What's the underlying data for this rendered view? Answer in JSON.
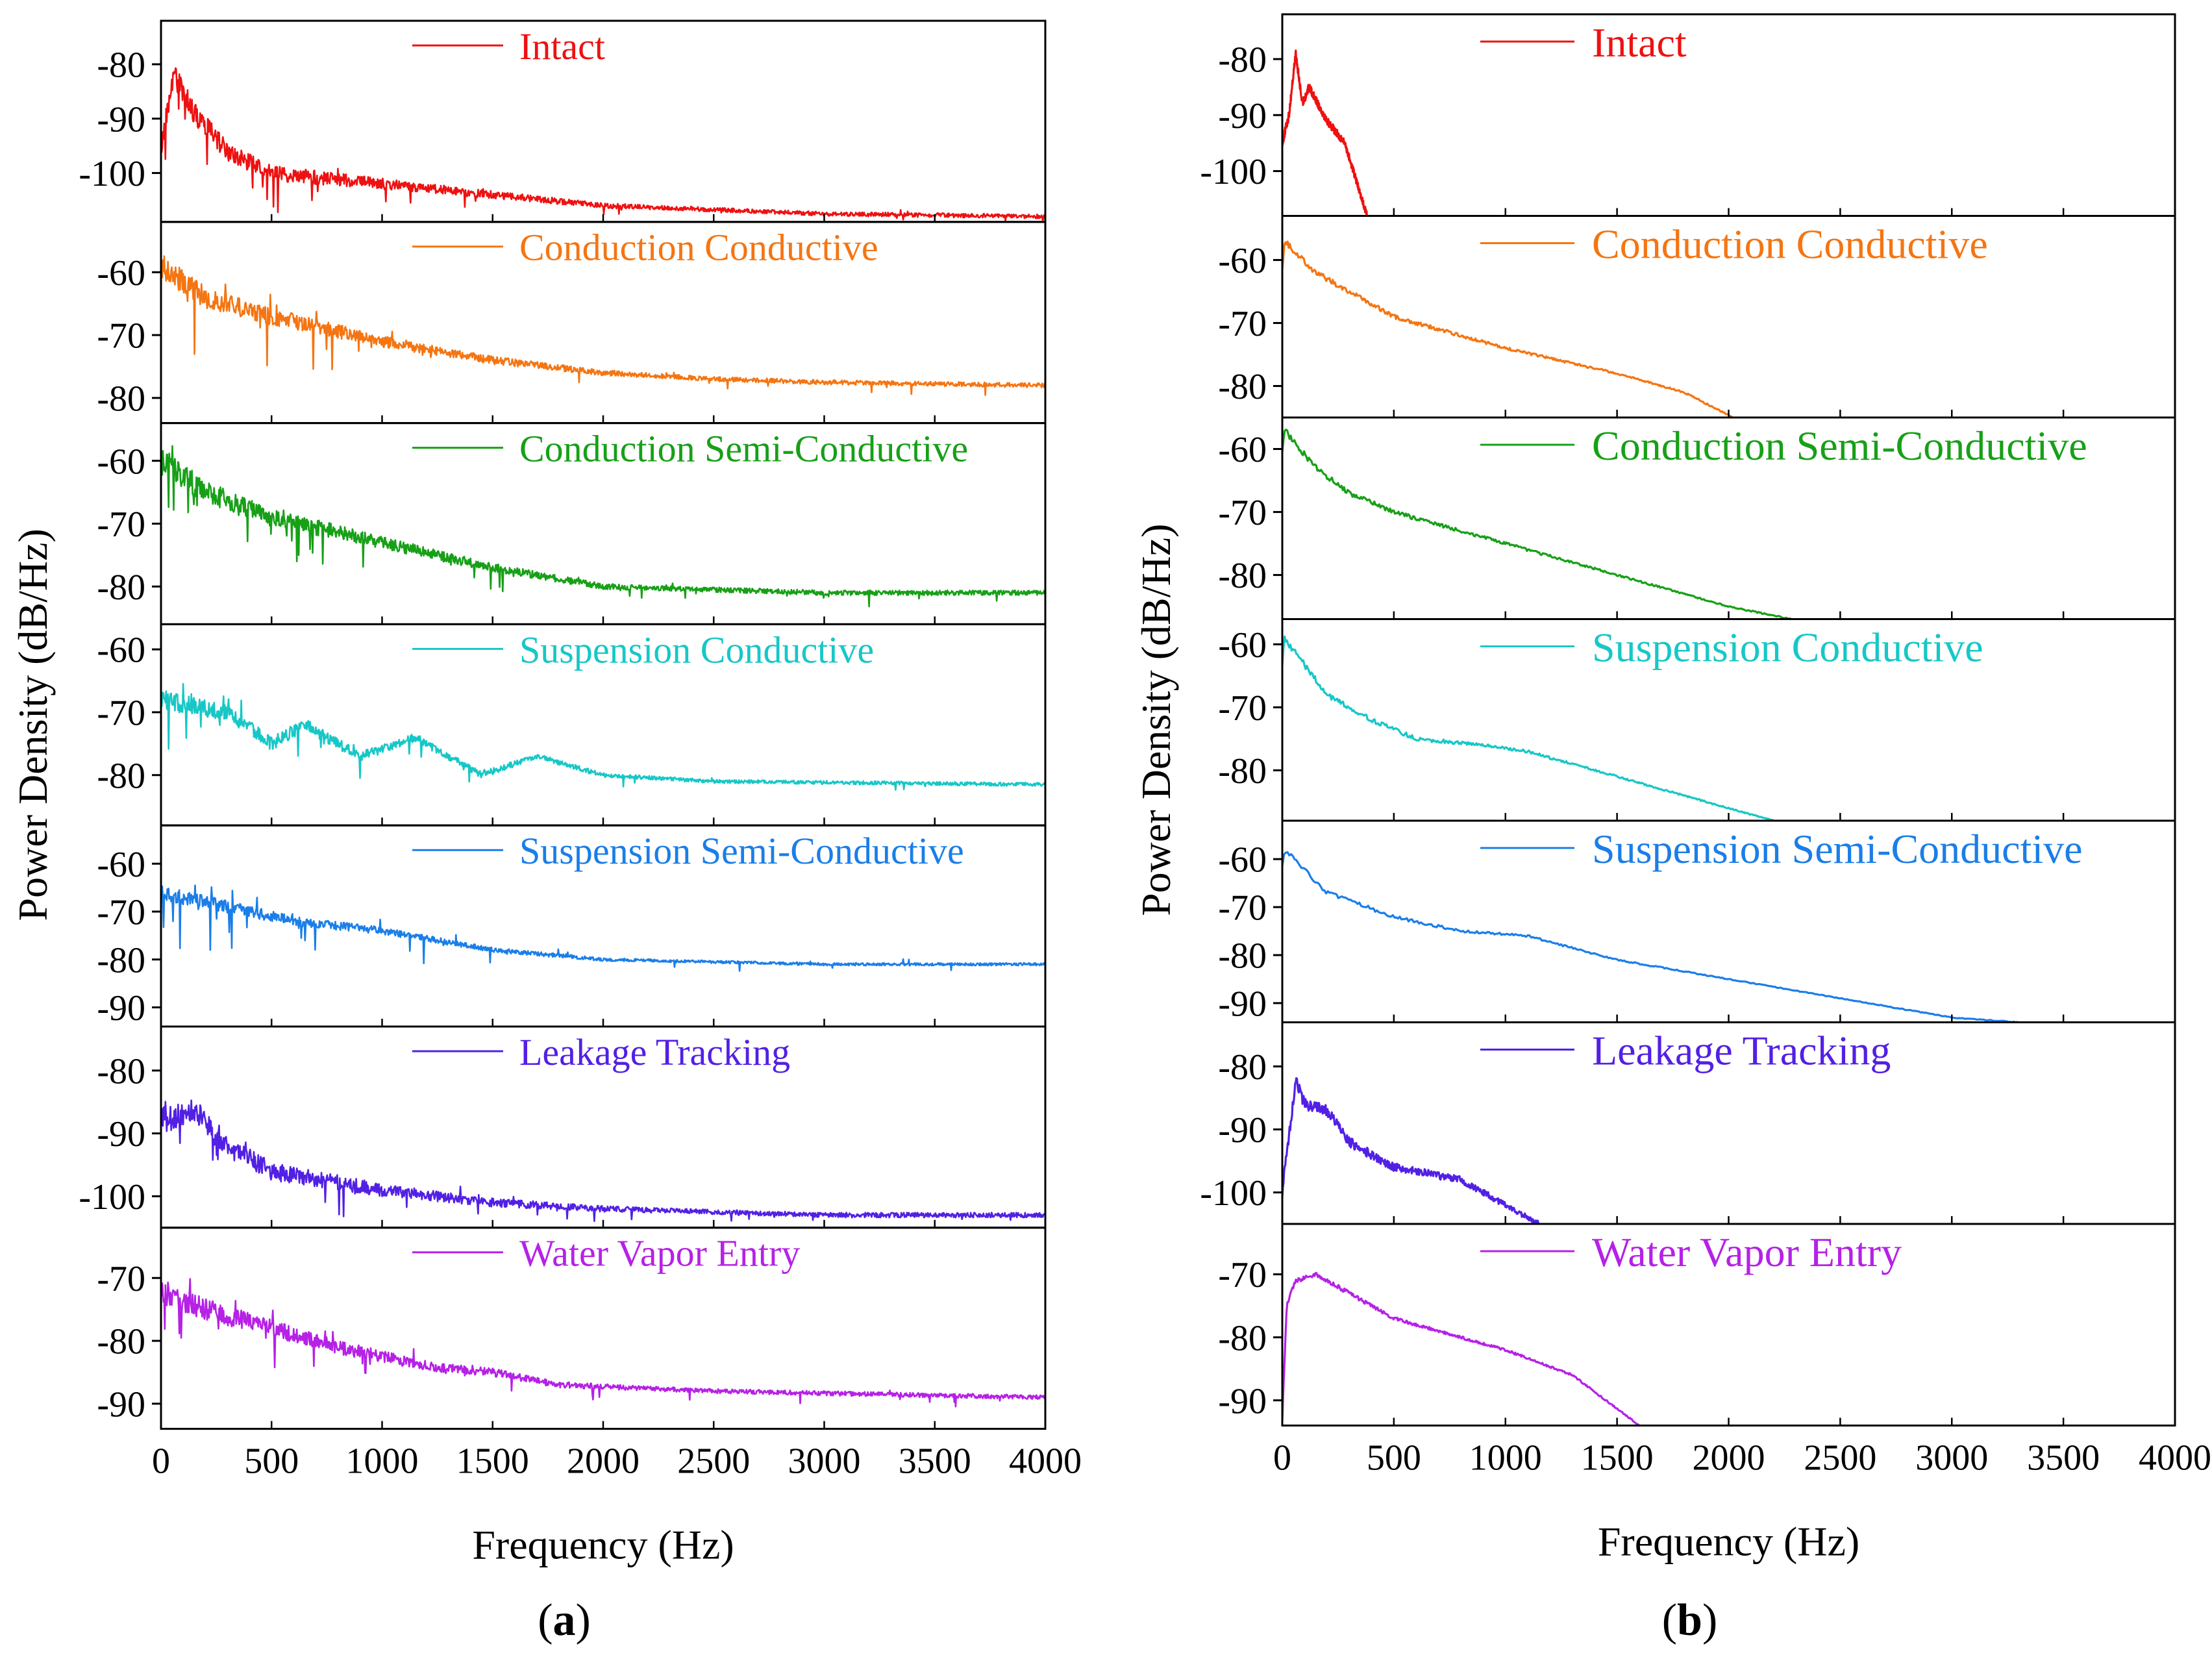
{
  "chart_data": [
    {
      "id": "a",
      "type": "line",
      "panel_label": "a",
      "xlabel": "Frequency (Hz)",
      "ylabel": "Power Density (dB/Hz)",
      "xlim": [
        0,
        4000
      ],
      "xticks": [
        0,
        500,
        1000,
        1500,
        2000,
        2500,
        3000,
        3500,
        4000
      ],
      "rows": [
        {
          "name": "Intact",
          "color": "#ee1111",
          "ylim": [
            -109,
            -72
          ],
          "yticks": [
            -80,
            -90,
            -100
          ],
          "noise": 2.2,
          "spike": 6,
          "trend": [
            [
              0,
              -95
            ],
            [
              60,
              -82
            ],
            [
              150,
              -89
            ],
            [
              300,
              -96
            ],
            [
              500,
              -100
            ],
            [
              1000,
              -102
            ],
            [
              1500,
              -104
            ],
            [
              2000,
              -106
            ],
            [
              3000,
              -107.5
            ],
            [
              4000,
              -108
            ]
          ]
        },
        {
          "name": "Conduction Conductive",
          "color": "#f57512",
          "ylim": [
            -84,
            -52
          ],
          "yticks": [
            -60,
            -70,
            -80
          ],
          "noise": 2.0,
          "spike": 7,
          "trend": [
            [
              0,
              -59
            ],
            [
              200,
              -64
            ],
            [
              500,
              -67
            ],
            [
              1000,
              -71
            ],
            [
              1500,
              -74
            ],
            [
              2000,
              -76
            ],
            [
              2500,
              -77
            ],
            [
              3000,
              -77.5
            ],
            [
              4000,
              -78
            ]
          ]
        },
        {
          "name": "Conduction Semi-Conductive",
          "color": "#17a017",
          "ylim": [
            -86,
            -54
          ],
          "yticks": [
            -60,
            -70,
            -80
          ],
          "noise": 2.2,
          "spike": 7,
          "trend": [
            [
              0,
              -60
            ],
            [
              200,
              -65
            ],
            [
              500,
              -69
            ],
            [
              1000,
              -73
            ],
            [
              1500,
              -77
            ],
            [
              2000,
              -80
            ],
            [
              2500,
              -80.5
            ],
            [
              3000,
              -81
            ],
            [
              4000,
              -81
            ]
          ]
        },
        {
          "name": "Suspension Conductive",
          "color": "#17c7c7",
          "ylim": [
            -88,
            -56
          ],
          "yticks": [
            -60,
            -70,
            -80
          ],
          "noise": 1.6,
          "spike": 5,
          "trend": [
            [
              0,
              -68
            ],
            [
              300,
              -70
            ],
            [
              500,
              -75
            ],
            [
              650,
              -72
            ],
            [
              900,
              -77
            ],
            [
              1150,
              -74
            ],
            [
              1450,
              -80
            ],
            [
              1700,
              -77
            ],
            [
              2000,
              -80
            ],
            [
              2500,
              -81
            ],
            [
              4000,
              -81.5
            ]
          ]
        },
        {
          "name": "Suspension Semi-Conductive",
          "color": "#1a7ee8",
          "ylim": [
            -94,
            -52
          ],
          "yticks": [
            -60,
            -70,
            -80,
            -90
          ],
          "noise": 1.6,
          "spike": 8,
          "trend": [
            [
              0,
              -66
            ],
            [
              300,
              -69
            ],
            [
              600,
              -72
            ],
            [
              1000,
              -74
            ],
            [
              1500,
              -78
            ],
            [
              2000,
              -80
            ],
            [
              3000,
              -81
            ],
            [
              4000,
              -81
            ]
          ]
        },
        {
          "name": "Leakage Tracking",
          "color": "#5220e4",
          "ylim": [
            -105,
            -73
          ],
          "yticks": [
            -80,
            -90,
            -100
          ],
          "noise": 2.2,
          "spike": 6,
          "trend": [
            [
              0,
              -88
            ],
            [
              150,
              -86
            ],
            [
              300,
              -92
            ],
            [
              500,
              -96
            ],
            [
              1000,
              -99
            ],
            [
              1500,
              -101
            ],
            [
              2000,
              -102
            ],
            [
              3000,
              -103
            ],
            [
              4000,
              -103
            ]
          ]
        },
        {
          "name": "Water Vapor Entry",
          "color": "#b621e6",
          "ylim": [
            -94,
            -62
          ],
          "yticks": [
            -70,
            -80,
            -90
          ],
          "noise": 2.0,
          "spike": 6,
          "trend": [
            [
              0,
              -72
            ],
            [
              200,
              -75
            ],
            [
              500,
              -78
            ],
            [
              800,
              -81
            ],
            [
              1200,
              -84
            ],
            [
              1500,
              -85
            ],
            [
              1800,
              -87
            ],
            [
              2500,
              -88
            ],
            [
              4000,
              -89
            ]
          ]
        }
      ]
    },
    {
      "id": "b",
      "type": "line",
      "panel_label": "b",
      "xlabel": "Frequency (Hz)",
      "ylabel": "Power Density (dB/Hz)",
      "xlim": [
        0,
        4000
      ],
      "xticks": [
        0,
        500,
        1000,
        1500,
        2000,
        2500,
        3000,
        3500,
        4000
      ],
      "rows": [
        {
          "name": "Intact",
          "color": "#ee1111",
          "ylim": [
            -108,
            -72
          ],
          "yticks": [
            -80,
            -90,
            -100
          ],
          "noise": 0.8,
          "spike": 0,
          "trend": [
            [
              0,
              -95
            ],
            [
              30,
              -90
            ],
            [
              60,
              -79
            ],
            [
              90,
              -88
            ],
            [
              120,
              -85
            ],
            [
              200,
              -91
            ],
            [
              280,
              -95
            ],
            [
              380,
              -108
            ]
          ]
        },
        {
          "name": "Conduction Conductive",
          "color": "#f57512",
          "ylim": [
            -85,
            -53
          ],
          "yticks": [
            -60,
            -70,
            -80
          ],
          "noise": 0.5,
          "spike": 0,
          "trend": [
            [
              0,
              -61
            ],
            [
              10,
              -57
            ],
            [
              150,
              -62
            ],
            [
              300,
              -65
            ],
            [
              500,
              -69
            ],
            [
              1000,
              -74
            ],
            [
              1500,
              -78
            ],
            [
              1800,
              -81
            ],
            [
              2020,
              -85
            ]
          ]
        },
        {
          "name": "Conduction Semi-Conductive",
          "color": "#17a017",
          "ylim": [
            -87,
            -55
          ],
          "yticks": [
            -60,
            -70,
            -80
          ],
          "noise": 0.5,
          "spike": 0,
          "trend": [
            [
              0,
              -60
            ],
            [
              10,
              -57
            ],
            [
              150,
              -63
            ],
            [
              300,
              -67
            ],
            [
              500,
              -70
            ],
            [
              1000,
              -75
            ],
            [
              1500,
              -80
            ],
            [
              2000,
              -85
            ],
            [
              2280,
              -87
            ]
          ]
        },
        {
          "name": "Suspension Conductive",
          "color": "#17c7c7",
          "ylim": [
            -88,
            -56
          ],
          "yticks": [
            -60,
            -70,
            -80
          ],
          "noise": 0.5,
          "spike": 0,
          "trend": [
            [
              0,
              -63
            ],
            [
              10,
              -59
            ],
            [
              200,
              -68
            ],
            [
              400,
              -72
            ],
            [
              600,
              -75
            ],
            [
              900,
              -76
            ],
            [
              1100,
              -77
            ],
            [
              1500,
              -81
            ],
            [
              2000,
              -86
            ],
            [
              2200,
              -88
            ]
          ]
        },
        {
          "name": "Suspension Semi-Conductive",
          "color": "#1a7ee8",
          "ylim": [
            -94,
            -52
          ],
          "yticks": [
            -60,
            -70,
            -80,
            -90
          ],
          "noise": 0.5,
          "spike": 0,
          "trend": [
            [
              0,
              -61
            ],
            [
              10,
              -58
            ],
            [
              200,
              -67
            ],
            [
              500,
              -72
            ],
            [
              800,
              -75
            ],
            [
              1100,
              -76
            ],
            [
              1500,
              -81
            ],
            [
              2000,
              -85
            ],
            [
              2500,
              -89
            ],
            [
              3000,
              -93
            ],
            [
              3300,
              -94
            ]
          ]
        },
        {
          "name": "Leakage Tracking",
          "color": "#5220e4",
          "ylim": [
            -105,
            -73
          ],
          "yticks": [
            -80,
            -90,
            -100
          ],
          "noise": 1.0,
          "spike": 0,
          "trend": [
            [
              0,
              -100
            ],
            [
              40,
              -88
            ],
            [
              60,
              -82
            ],
            [
              100,
              -86
            ],
            [
              200,
              -87
            ],
            [
              300,
              -92
            ],
            [
              500,
              -96
            ],
            [
              800,
              -98
            ],
            [
              1000,
              -102
            ],
            [
              1150,
              -105
            ]
          ]
        },
        {
          "name": "Water Vapor Entry",
          "color": "#b621e6",
          "ylim": [
            -94,
            -62
          ],
          "yticks": [
            -70,
            -80,
            -90
          ],
          "noise": 0.4,
          "spike": 0,
          "trend": [
            [
              0,
              -93
            ],
            [
              20,
              -75
            ],
            [
              60,
              -71
            ],
            [
              150,
              -70
            ],
            [
              300,
              -73
            ],
            [
              500,
              -77
            ],
            [
              1000,
              -82
            ],
            [
              1300,
              -86
            ],
            [
              1600,
              -94
            ]
          ]
        }
      ]
    }
  ]
}
